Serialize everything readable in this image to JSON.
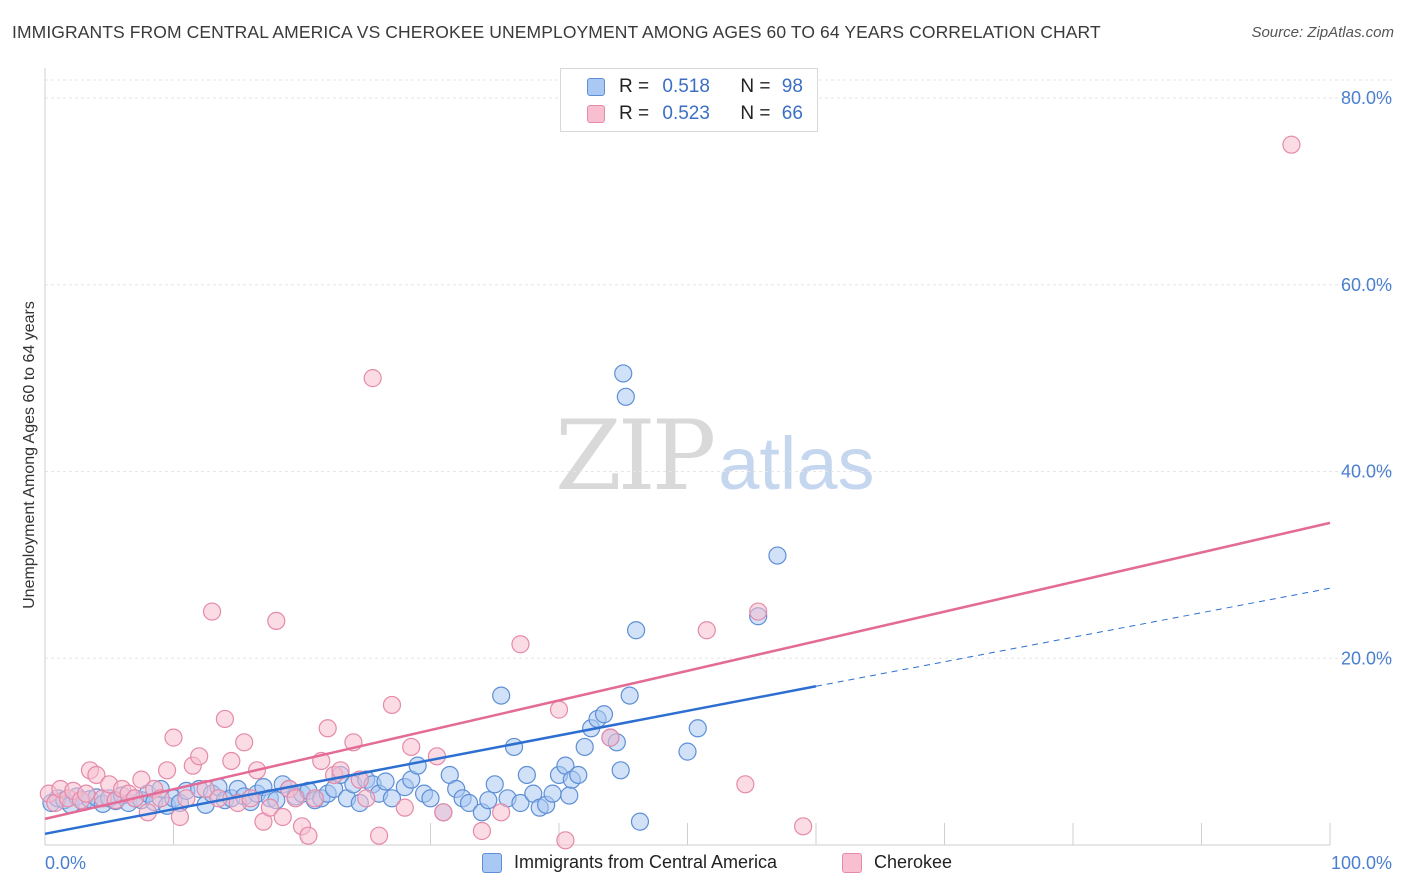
{
  "title": "IMMIGRANTS FROM CENTRAL AMERICA VS CHEROKEE UNEMPLOYMENT AMONG AGES 60 TO 64 YEARS CORRELATION CHART",
  "source": "Source: ZipAtlas.com",
  "watermark": {
    "zip": "ZIP",
    "atlas": "atlas"
  },
  "legend": {
    "blue": {
      "r_label": "R =",
      "r_value": "0.518",
      "n_label": "N =",
      "n_value": "98"
    },
    "pink": {
      "r_label": "R =",
      "r_value": "0.523",
      "n_label": "N =",
      "n_value": "66"
    }
  },
  "bottom_legend": {
    "blue": "Immigrants from Central America",
    "pink": "Cherokee"
  },
  "colors": {
    "blue_fill": "#a9c8f3",
    "blue_stroke": "#5e8fd6",
    "blue_line": "#2d6fd1",
    "pink_fill": "#f7bfd0",
    "pink_stroke": "#e58aa8",
    "pink_line": "#e36b96",
    "axis_text": "#4a7fcf",
    "grid": "#e6e6e6"
  },
  "chart_data": {
    "type": "scatter",
    "title": "IMMIGRANTS FROM CENTRAL AMERICA VS CHEROKEE UNEMPLOYMENT AMONG AGES 60 TO 64 YEARS CORRELATION CHART",
    "xlabel": "",
    "ylabel": "Unemployment Among Ages 60 to 64 years",
    "xlim": [
      0,
      100
    ],
    "ylim": [
      0,
      80
    ],
    "x_tick_labels": [
      "0.0%",
      "100.0%"
    ],
    "y_tick_labels": [
      "20.0%",
      "40.0%",
      "60.0%",
      "80.0%"
    ],
    "y_ticks": [
      20,
      40,
      60,
      80
    ],
    "grid": true,
    "series": [
      {
        "name": "Immigrants from Central America",
        "color": "blue",
        "trend": {
          "x0": 0,
          "y0": 1.2,
          "x1": 60,
          "y1": 17.0,
          "dash_to_x": 100,
          "dash_to_y": 27.5
        },
        "points": [
          [
            0.5,
            4.5
          ],
          [
            1,
            5
          ],
          [
            1.5,
            4.8
          ],
          [
            2,
            4.3
          ],
          [
            2.5,
            5.2
          ],
          [
            3,
            4.6
          ],
          [
            3.5,
            4.9
          ],
          [
            4,
            5.1
          ],
          [
            4.5,
            4.4
          ],
          [
            5,
            5
          ],
          [
            5.5,
            4.7
          ],
          [
            6,
            5.3
          ],
          [
            6.5,
            4.5
          ],
          [
            7,
            5
          ],
          [
            7.5,
            4.8
          ],
          [
            8,
            5.5
          ],
          [
            8.5,
            4.6
          ],
          [
            9,
            6
          ],
          [
            9.5,
            4.2
          ],
          [
            10,
            5
          ],
          [
            10.5,
            4.5
          ],
          [
            11,
            5.8
          ],
          [
            12,
            6
          ],
          [
            12.5,
            4.3
          ],
          [
            13,
            5.5
          ],
          [
            13.5,
            6.2
          ],
          [
            14,
            4.8
          ],
          [
            14.5,
            5
          ],
          [
            15,
            6
          ],
          [
            15.5,
            5.2
          ],
          [
            16,
            4.6
          ],
          [
            16.5,
            5.5
          ],
          [
            17,
            6.2
          ],
          [
            17.5,
            5
          ],
          [
            18,
            4.8
          ],
          [
            18.5,
            6.5
          ],
          [
            19,
            6
          ],
          [
            19.5,
            5.2
          ],
          [
            20,
            5.5
          ],
          [
            20.5,
            5.8
          ],
          [
            21,
            4.8
          ],
          [
            21.5,
            5
          ],
          [
            22,
            5.5
          ],
          [
            22.5,
            6
          ],
          [
            23,
            7.5
          ],
          [
            23.5,
            5
          ],
          [
            24,
            6.5
          ],
          [
            24.5,
            4.5
          ],
          [
            25,
            7
          ],
          [
            25.5,
            6.5
          ],
          [
            26,
            5.5
          ],
          [
            26.5,
            6.8
          ],
          [
            27,
            5
          ],
          [
            28,
            6.2
          ],
          [
            28.5,
            7
          ],
          [
            29,
            8.5
          ],
          [
            29.5,
            5.5
          ],
          [
            30,
            5
          ],
          [
            31,
            3.5
          ],
          [
            31.5,
            7.5
          ],
          [
            32,
            6
          ],
          [
            32.5,
            5
          ],
          [
            33,
            4.5
          ],
          [
            34,
            3.5
          ],
          [
            34.5,
            4.8
          ],
          [
            35,
            6.5
          ],
          [
            35.5,
            16
          ],
          [
            36,
            5
          ],
          [
            36.5,
            10.5
          ],
          [
            37,
            4.5
          ],
          [
            37.5,
            7.5
          ],
          [
            38,
            5.5
          ],
          [
            38.5,
            4
          ],
          [
            39,
            4.3
          ],
          [
            39.5,
            5.5
          ],
          [
            40,
            7.5
          ],
          [
            40.5,
            8.5
          ],
          [
            40.8,
            5.3
          ],
          [
            41,
            7
          ],
          [
            41.5,
            7.5
          ],
          [
            42,
            10.5
          ],
          [
            42.5,
            12.5
          ],
          [
            43,
            13.5
          ],
          [
            43.5,
            14
          ],
          [
            44,
            11.5
          ],
          [
            44.5,
            11
          ],
          [
            44.8,
            8
          ],
          [
            45,
            50.5
          ],
          [
            45.2,
            48
          ],
          [
            45.5,
            16
          ],
          [
            46,
            23
          ],
          [
            46.3,
            2.5
          ],
          [
            50,
            10
          ],
          [
            50.8,
            12.5
          ],
          [
            55.5,
            24.5
          ],
          [
            57,
            31
          ]
        ]
      },
      {
        "name": "Cherokee",
        "color": "pink",
        "trend": {
          "x0": 0,
          "y0": 2.8,
          "x1": 100,
          "y1": 34.5
        },
        "points": [
          [
            0.3,
            5.5
          ],
          [
            0.8,
            4.5
          ],
          [
            1.2,
            6
          ],
          [
            1.8,
            5
          ],
          [
            2.2,
            5.8
          ],
          [
            2.8,
            4.8
          ],
          [
            3.2,
            5.5
          ],
          [
            3.5,
            8
          ],
          [
            4,
            7.5
          ],
          [
            4.5,
            5
          ],
          [
            5,
            6.5
          ],
          [
            5.5,
            4.8
          ],
          [
            6,
            6
          ],
          [
            6.5,
            5.5
          ],
          [
            7,
            5
          ],
          [
            7.5,
            7
          ],
          [
            8,
            3.5
          ],
          [
            8.5,
            6
          ],
          [
            9,
            5
          ],
          [
            9.5,
            8
          ],
          [
            10,
            11.5
          ],
          [
            10.5,
            3
          ],
          [
            11,
            5
          ],
          [
            11.5,
            8.5
          ],
          [
            12,
            9.5
          ],
          [
            12.5,
            6
          ],
          [
            13,
            25
          ],
          [
            13.5,
            5
          ],
          [
            14,
            13.5
          ],
          [
            14.5,
            9
          ],
          [
            15,
            4.5
          ],
          [
            15.5,
            11
          ],
          [
            16,
            5
          ],
          [
            16.5,
            8
          ],
          [
            17,
            2.5
          ],
          [
            17.5,
            4
          ],
          [
            18,
            24
          ],
          [
            18.5,
            3
          ],
          [
            19,
            6
          ],
          [
            19.5,
            5
          ],
          [
            20,
            2
          ],
          [
            20.5,
            1
          ],
          [
            21,
            5
          ],
          [
            21.5,
            9
          ],
          [
            22,
            12.5
          ],
          [
            22.5,
            7.5
          ],
          [
            23,
            8
          ],
          [
            24,
            11
          ],
          [
            24.5,
            7
          ],
          [
            25,
            5
          ],
          [
            25.5,
            50
          ],
          [
            26,
            1
          ],
          [
            27,
            15
          ],
          [
            28,
            4
          ],
          [
            28.5,
            10.5
          ],
          [
            30.5,
            9.5
          ],
          [
            31,
            3.5
          ],
          [
            34,
            1.5
          ],
          [
            35.5,
            3.5
          ],
          [
            37,
            21.5
          ],
          [
            40,
            14.5
          ],
          [
            40.5,
            0.5
          ],
          [
            44,
            11.5
          ],
          [
            51.5,
            23
          ],
          [
            54.5,
            6.5
          ],
          [
            55.5,
            25
          ],
          [
            59,
            2
          ],
          [
            97,
            75
          ]
        ]
      }
    ]
  }
}
